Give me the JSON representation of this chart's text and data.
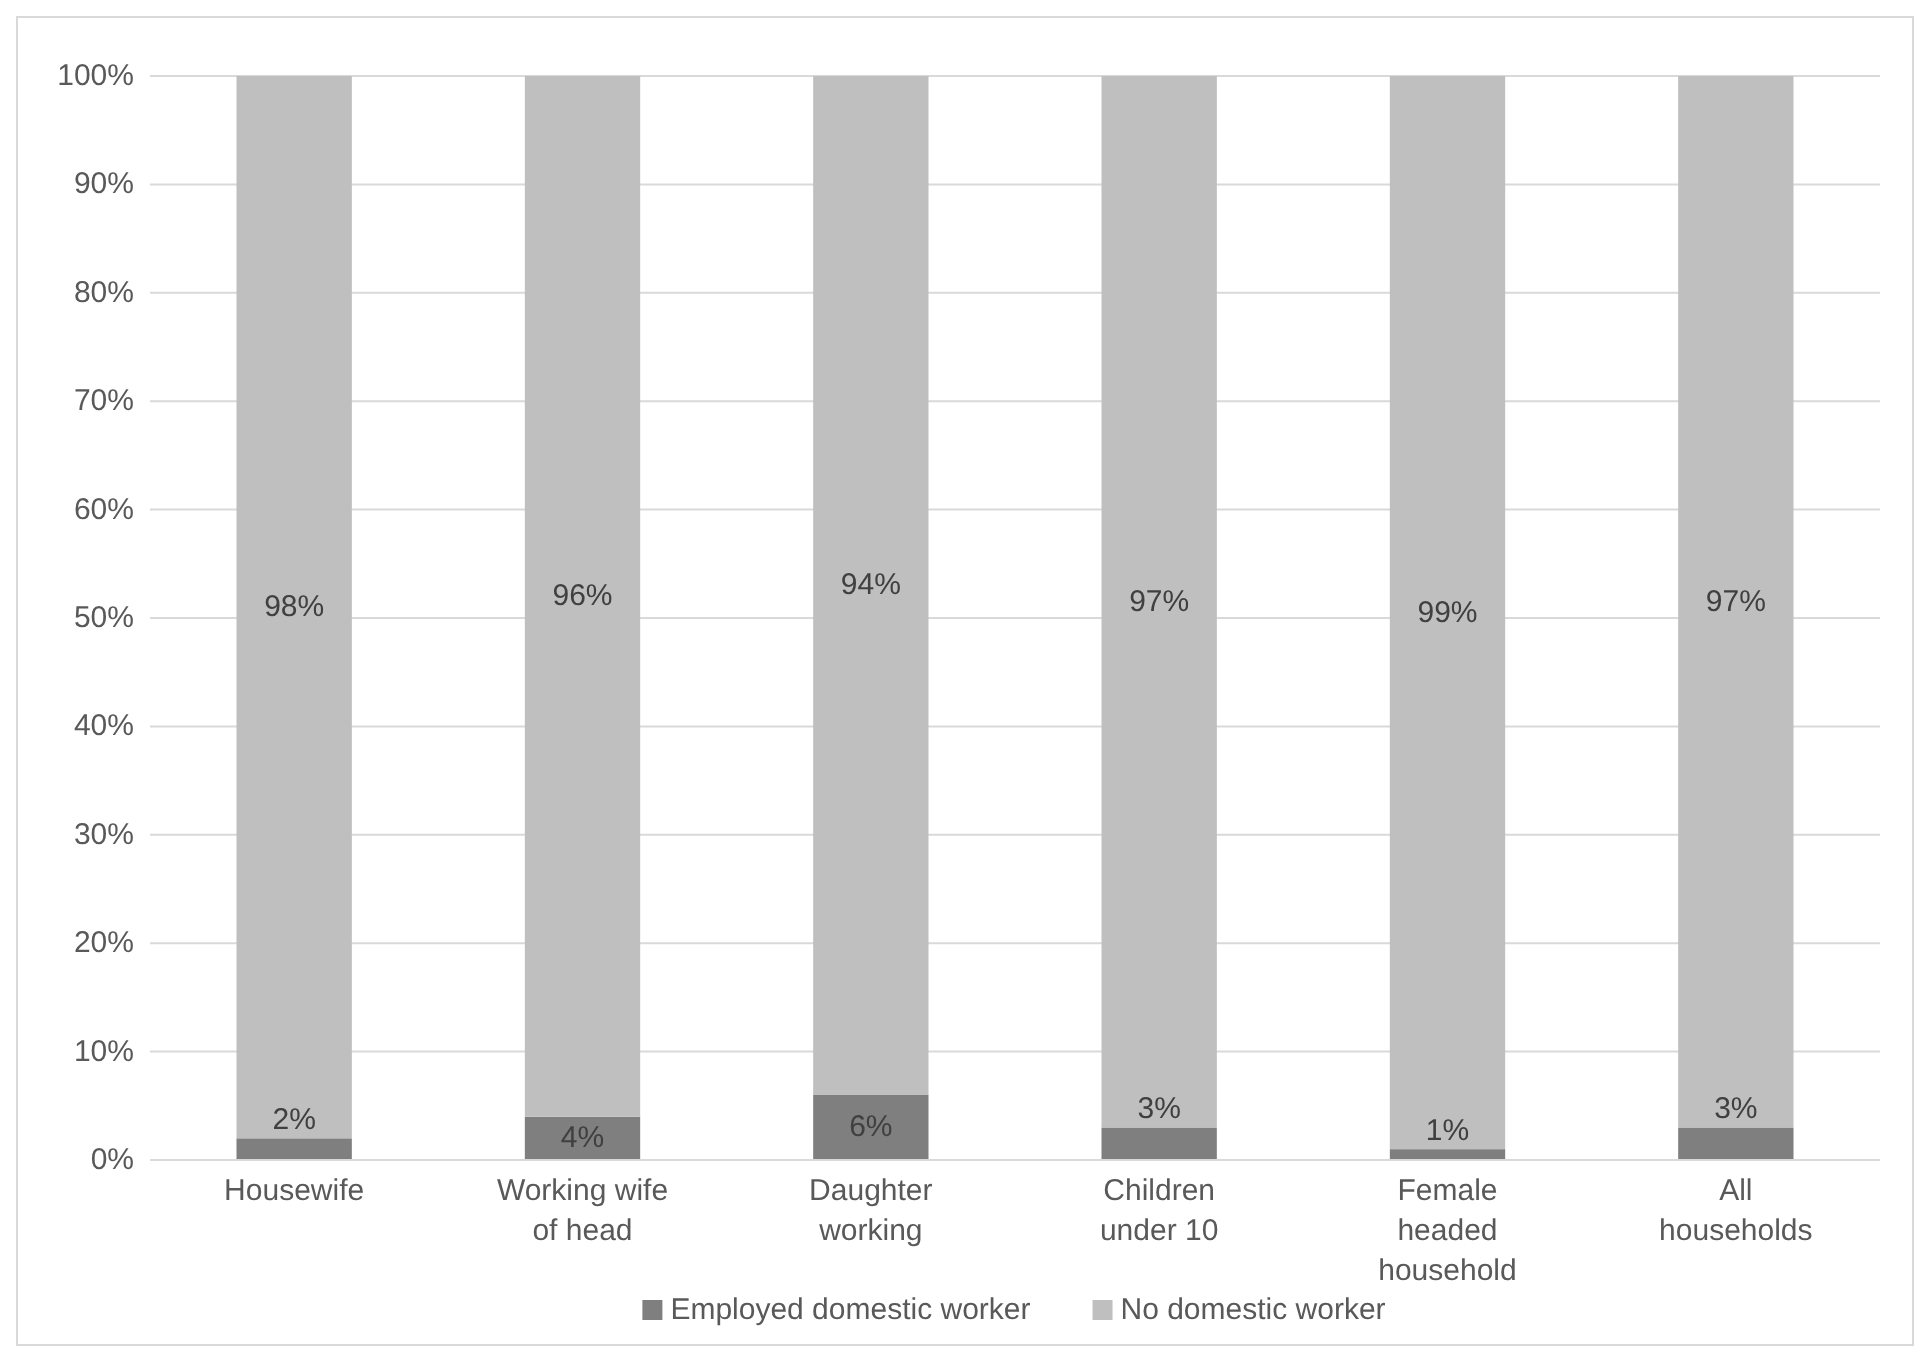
{
  "chart_data": {
    "type": "bar",
    "stacked": true,
    "categories": [
      "Housewife",
      "Working wife of head",
      "Daughter working",
      "Children under 10",
      "Female headed household",
      "All households"
    ],
    "series": [
      {
        "name": "Employed domestic worker",
        "color": "#7f7f7f",
        "values": [
          2,
          4,
          6,
          3,
          1,
          3
        ],
        "value_labels": [
          "2%",
          "4%",
          "6%",
          "3%",
          "1%",
          "3%"
        ]
      },
      {
        "name": "No domestic worker",
        "color": "#bfbfbf",
        "values": [
          98,
          96,
          94,
          97,
          99,
          97
        ],
        "value_labels": [
          "98%",
          "96%",
          "94%",
          "97%",
          "99%",
          "97%"
        ]
      }
    ],
    "ylim": [
      0,
      100
    ],
    "yticks": [
      {
        "value": 0,
        "label": "0%"
      },
      {
        "value": 10,
        "label": "10%"
      },
      {
        "value": 20,
        "label": "20%"
      },
      {
        "value": 30,
        "label": "30%"
      },
      {
        "value": 40,
        "label": "40%"
      },
      {
        "value": 50,
        "label": "50%"
      },
      {
        "value": 60,
        "label": "60%"
      },
      {
        "value": 70,
        "label": "70%"
      },
      {
        "value": 80,
        "label": "80%"
      },
      {
        "value": 90,
        "label": "90%"
      },
      {
        "value": 100,
        "label": "100%"
      }
    ],
    "grid": "y",
    "legend": "bottom"
  }
}
